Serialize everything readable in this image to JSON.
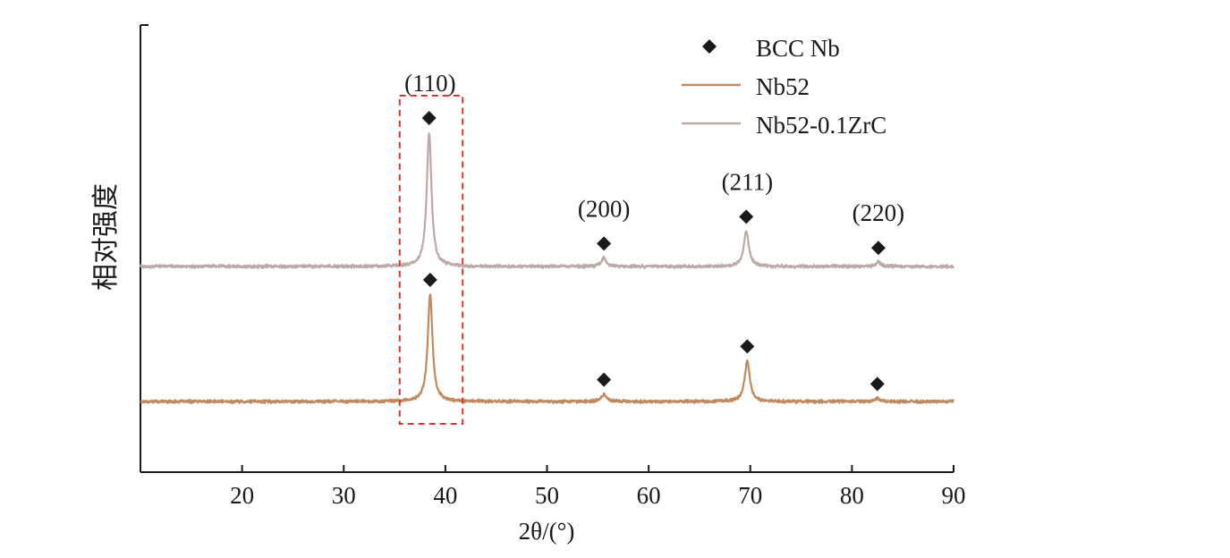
{
  "chart_data": {
    "type": "line",
    "xlabel": "2θ/(°)",
    "ylabel": "相对强度",
    "xlim": [
      10,
      90
    ],
    "xticks": [
      20,
      30,
      40,
      50,
      60,
      70,
      80,
      90
    ],
    "y_ticks_shown": false,
    "grid": false,
    "legend_position": "top-right",
    "marker_legend": {
      "name": "BCC Nb",
      "symbol": "diamond",
      "color": "#1a1a1a"
    },
    "series": [
      {
        "name": "Nb52",
        "color": "#c08a5e",
        "baseline": 0,
        "peaks": [
          {
            "two_theta": 38.5,
            "intensity": 100,
            "width": 0.28
          },
          {
            "two_theta": 55.6,
            "intensity": 7,
            "width": 0.3
          },
          {
            "two_theta": 69.7,
            "intensity": 38,
            "width": 0.3
          },
          {
            "two_theta": 82.5,
            "intensity": 3,
            "width": 0.3
          }
        ]
      },
      {
        "name": "Nb52-0.1ZrC",
        "color": "#bcaaa4",
        "baseline": 1,
        "peaks": [
          {
            "two_theta": 38.4,
            "intensity": 125,
            "width": 0.28
          },
          {
            "two_theta": 55.6,
            "intensity": 8,
            "width": 0.3
          },
          {
            "two_theta": 69.6,
            "intensity": 33,
            "width": 0.3
          },
          {
            "two_theta": 82.6,
            "intensity": 4,
            "width": 0.3
          }
        ]
      }
    ],
    "peak_labels": [
      {
        "text": "(110)",
        "two_theta": 38.5
      },
      {
        "text": "(200)",
        "two_theta": 55.6
      },
      {
        "text": "(211)",
        "two_theta": 69.7
      },
      {
        "text": "(220)",
        "two_theta": 82.6
      }
    ],
    "highlight_box": {
      "x_range": [
        35.5,
        41.7
      ],
      "style": "dashed",
      "color": "#e03030"
    }
  }
}
